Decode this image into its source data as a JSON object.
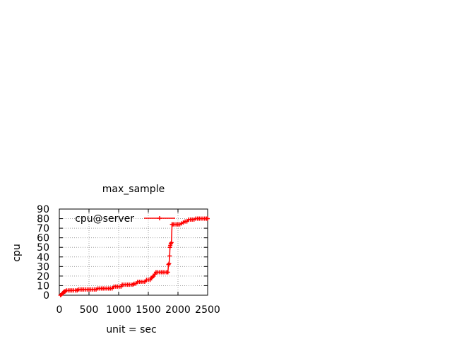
{
  "chart_data": {
    "type": "line",
    "title": "max_sample",
    "xlabel": "unit = sec",
    "ylabel": "cpu",
    "xlim": [
      0,
      2500
    ],
    "ylim": [
      0,
      90
    ],
    "xticks": [
      0,
      500,
      1000,
      1500,
      2000,
      2500
    ],
    "yticks": [
      0,
      10,
      20,
      30,
      40,
      50,
      60,
      70,
      80,
      90
    ],
    "grid": true,
    "legend_position": "top",
    "series": [
      {
        "name": "cpu@server",
        "color": "#ff0000",
        "marker": "plus",
        "points": [
          [
            20,
            0
          ],
          [
            40,
            1
          ],
          [
            60,
            2
          ],
          [
            70,
            3
          ],
          [
            85,
            4
          ],
          [
            100,
            4
          ],
          [
            120,
            5
          ],
          [
            150,
            5
          ],
          [
            180,
            5
          ],
          [
            210,
            5
          ],
          [
            240,
            5
          ],
          [
            270,
            5
          ],
          [
            300,
            5
          ],
          [
            320,
            6
          ],
          [
            350,
            6
          ],
          [
            380,
            6
          ],
          [
            410,
            6
          ],
          [
            440,
            6
          ],
          [
            470,
            6
          ],
          [
            500,
            6
          ],
          [
            530,
            6
          ],
          [
            560,
            6
          ],
          [
            590,
            6
          ],
          [
            620,
            6
          ],
          [
            650,
            7
          ],
          [
            680,
            7
          ],
          [
            710,
            7
          ],
          [
            740,
            7
          ],
          [
            770,
            7
          ],
          [
            800,
            7
          ],
          [
            830,
            7
          ],
          [
            860,
            7
          ],
          [
            890,
            7
          ],
          [
            920,
            9
          ],
          [
            950,
            9
          ],
          [
            980,
            9
          ],
          [
            1010,
            9
          ],
          [
            1040,
            9
          ],
          [
            1060,
            11
          ],
          [
            1090,
            11
          ],
          [
            1120,
            11
          ],
          [
            1150,
            11
          ],
          [
            1180,
            11
          ],
          [
            1210,
            11
          ],
          [
            1240,
            11
          ],
          [
            1260,
            12
          ],
          [
            1290,
            12
          ],
          [
            1320,
            14
          ],
          [
            1350,
            14
          ],
          [
            1380,
            14
          ],
          [
            1410,
            14
          ],
          [
            1440,
            14
          ],
          [
            1470,
            16
          ],
          [
            1500,
            16
          ],
          [
            1530,
            16
          ],
          [
            1550,
            18
          ],
          [
            1570,
            19
          ],
          [
            1590,
            20
          ],
          [
            1610,
            22
          ],
          [
            1630,
            24
          ],
          [
            1660,
            24
          ],
          [
            1690,
            24
          ],
          [
            1720,
            24
          ],
          [
            1750,
            24
          ],
          [
            1780,
            24
          ],
          [
            1810,
            24
          ],
          [
            1830,
            24
          ],
          [
            1840,
            32
          ],
          [
            1850,
            33
          ],
          [
            1860,
            41
          ],
          [
            1865,
            50
          ],
          [
            1870,
            52
          ],
          [
            1880,
            54
          ],
          [
            1890,
            55
          ],
          [
            1900,
            74
          ],
          [
            1920,
            74
          ],
          [
            1950,
            74
          ],
          [
            1980,
            74
          ],
          [
            2000,
            74
          ],
          [
            2030,
            74
          ],
          [
            2060,
            75
          ],
          [
            2090,
            76
          ],
          [
            2120,
            77
          ],
          [
            2150,
            77
          ],
          [
            2180,
            79
          ],
          [
            2210,
            79
          ],
          [
            2240,
            79
          ],
          [
            2270,
            79
          ],
          [
            2300,
            80
          ],
          [
            2330,
            80
          ],
          [
            2360,
            80
          ],
          [
            2390,
            80
          ],
          [
            2420,
            80
          ],
          [
            2450,
            80
          ],
          [
            2480,
            80
          ],
          [
            2500,
            80
          ]
        ]
      }
    ]
  }
}
